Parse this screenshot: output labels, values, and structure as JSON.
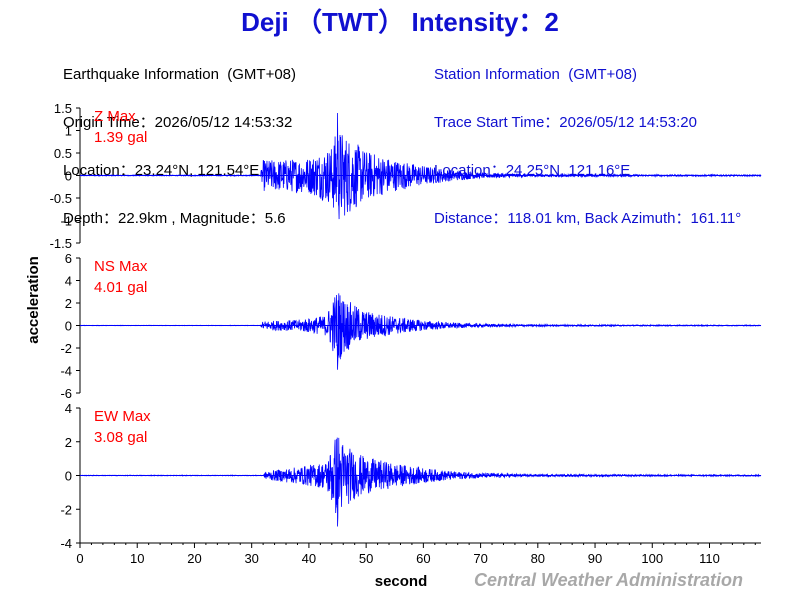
{
  "title": "Deji （TWT） Intensity：2",
  "earthquake_info": [
    "Earthquake Information  (GMT+08)",
    "Origin Time：2026/05/12 14:53:32",
    "Location：23.24°N, 121.54°E",
    "Depth：22.9km , Magnitude：5.6"
  ],
  "station_info": [
    "Station Information  (GMT+08)",
    "Trace Start Time：2026/05/12 14:53:20",
    "Location：24.25°N, 121.16°E",
    "Distance：118.01 km, Back Azimuth：161.11°"
  ],
  "footer": "Central Weather Administration",
  "colors": {
    "title": "#1010d0",
    "trace": "#0000ff",
    "peak_label": "#ff0000",
    "footer": "#a8a8a8"
  },
  "chart_data": {
    "type": "line",
    "xlabel": "second",
    "ylabel": "acceleration",
    "x_range": [
      0,
      119
    ],
    "x_ticks": [
      0,
      10,
      20,
      30,
      40,
      50,
      60,
      70,
      80,
      90,
      100,
      110
    ],
    "signal": {
      "p_arrival_s": 32,
      "peak_time_s": 45,
      "end_s": 119
    },
    "series": [
      {
        "name": "Z Max",
        "max_label": "1.39 gal",
        "max_value": 1.39,
        "ylim": [
          -1.5,
          1.5
        ],
        "y_ticks": [
          1.5,
          1,
          0.5,
          0,
          -0.5,
          -1,
          -1.5
        ],
        "y_tick_labels": [
          "1.5",
          "1",
          "0.5",
          "0",
          "-0.5",
          "-1",
          "-1.5"
        ],
        "envelope_points": [
          [
            0,
            0.01
          ],
          [
            31.5,
            0.01
          ],
          [
            32,
            0.35
          ],
          [
            35,
            0.35
          ],
          [
            40,
            0.4
          ],
          [
            44,
            0.65
          ],
          [
            45,
            1.1
          ],
          [
            46,
            0.95
          ],
          [
            50,
            0.55
          ],
          [
            55,
            0.35
          ],
          [
            60,
            0.22
          ],
          [
            65,
            0.12
          ],
          [
            70,
            0.06
          ],
          [
            80,
            0.03
          ],
          [
            100,
            0.02
          ],
          [
            119,
            0.015
          ]
        ]
      },
      {
        "name": "NS Max",
        "max_label": "4.01 gal",
        "max_value": 4.01,
        "ylim": [
          -6,
          6
        ],
        "y_ticks": [
          6,
          4,
          2,
          0,
          -2,
          -4,
          -6
        ],
        "y_tick_labels": [
          "6",
          "4",
          "2",
          "0",
          "-2",
          "-4",
          "-6"
        ],
        "envelope_points": [
          [
            0,
            0.02
          ],
          [
            31.5,
            0.02
          ],
          [
            32,
            0.4
          ],
          [
            38,
            0.5
          ],
          [
            43,
            0.9
          ],
          [
            45,
            3.4
          ],
          [
            46,
            2.6
          ],
          [
            48,
            1.8
          ],
          [
            50,
            1.3
          ],
          [
            55,
            0.8
          ],
          [
            60,
            0.45
          ],
          [
            65,
            0.25
          ],
          [
            70,
            0.15
          ],
          [
            80,
            0.08
          ],
          [
            100,
            0.05
          ],
          [
            119,
            0.04
          ]
        ]
      },
      {
        "name": "EW Max",
        "max_label": "3.08 gal",
        "max_value": 3.08,
        "ylim": [
          -4,
          4
        ],
        "y_ticks": [
          4,
          2,
          0,
          -2,
          -4
        ],
        "y_tick_labels": [
          "4",
          "2",
          "0",
          "-2",
          "-4"
        ],
        "envelope_points": [
          [
            0,
            0.02
          ],
          [
            32,
            0.02
          ],
          [
            32.5,
            0.25
          ],
          [
            38,
            0.5
          ],
          [
            43,
            0.8
          ],
          [
            45,
            2.7
          ],
          [
            46,
            2.0
          ],
          [
            48,
            1.4
          ],
          [
            50,
            1.1
          ],
          [
            55,
            0.7
          ],
          [
            60,
            0.45
          ],
          [
            65,
            0.25
          ],
          [
            70,
            0.15
          ],
          [
            80,
            0.07
          ],
          [
            100,
            0.05
          ],
          [
            119,
            0.04
          ]
        ]
      }
    ]
  }
}
